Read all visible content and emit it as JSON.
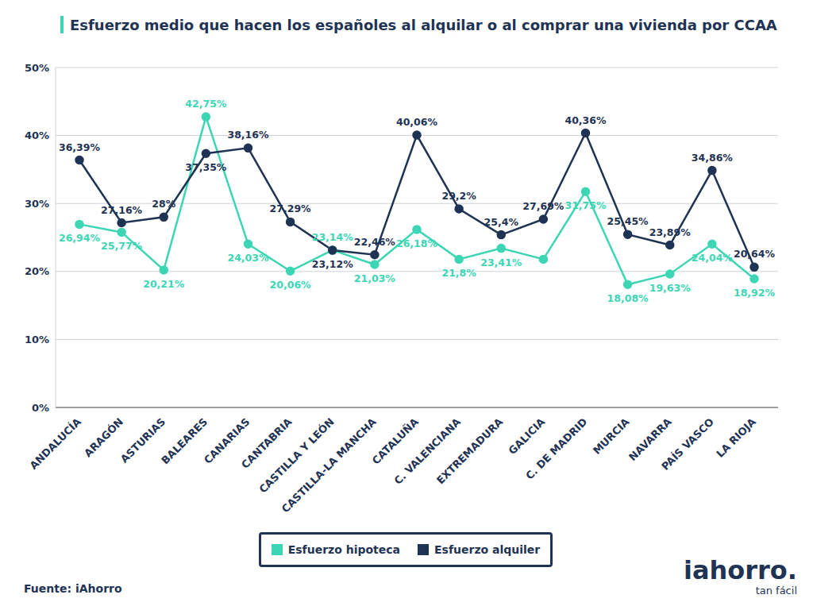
{
  "chart_data": {
    "type": "line",
    "title": "Esfuerzo medio que hacen los españoles al alquilar o al comprar una vivienda por CCAA",
    "categories": [
      "ANDALUCÍA",
      "ARAGÓN",
      "ASTURIAS",
      "BALEARES",
      "CANARIAS",
      "CANTABRIA",
      "CASTILLA Y LEÓN",
      "CASTILLA-LA MANCHA",
      "CATALUÑA",
      "C. VALENCIANA",
      "EXTREMADURA",
      "GALICIA",
      "C. DE MADRID",
      "MURCIA",
      "NAVARRA",
      "PAÍS VASCO",
      "LA RIOJA"
    ],
    "series": [
      {
        "name": "Esfuerzo hipoteca",
        "color": "#3dd6b5",
        "marker": "circle",
        "line_style": "solid",
        "values": [
          26.94,
          25.77,
          20.21,
          42.75,
          24.03,
          20.06,
          23.14,
          21.03,
          26.18,
          21.8,
          23.41,
          21.8,
          31.75,
          18.08,
          19.63,
          24.04,
          18.92
        ],
        "value_labels": [
          "26,94%",
          "25,77%",
          "20,21%",
          "42,75%",
          "24,03%",
          "20,06%",
          "23,14%",
          "21,03%",
          "26,18%",
          "21,8%",
          "23,41%",
          null,
          "31,75%",
          "18,08%",
          "19,63%",
          "24,04%",
          "18,92%"
        ]
      },
      {
        "name": "Esfuerzo alquiler",
        "color": "#1f3354",
        "marker": "circle",
        "line_style": "solid",
        "values": [
          36.39,
          27.16,
          28,
          37.35,
          38.16,
          27.29,
          23.12,
          22.46,
          40.06,
          29.2,
          25.4,
          27.69,
          40.36,
          25.45,
          23.89,
          34.86,
          20.64
        ],
        "value_labels": [
          "36,39%",
          "27,16%",
          "28%",
          "37,35%",
          "38,16%",
          "27,29%",
          "23,12%",
          "22,46%",
          "40,06%",
          "29,2%",
          "25,4%",
          "27,69%",
          "40,36%",
          "25,45%",
          "23,89%",
          "34,86%",
          "20,64%"
        ]
      }
    ],
    "ylim": [
      0,
      50
    ],
    "yticks": [
      {
        "value": 0,
        "label": "0%"
      },
      {
        "value": 10,
        "label": "10%"
      },
      {
        "value": 20,
        "label": "20%"
      },
      {
        "value": 30,
        "label": "30%"
      },
      {
        "value": 40,
        "label": "40%"
      },
      {
        "value": 50,
        "label": "50%"
      }
    ],
    "grid": true,
    "legend": "bottom",
    "data_labels": true,
    "source": "Fuente: iAhorro",
    "logo": "iahorro.",
    "logo_tagline": "tan fácil"
  }
}
